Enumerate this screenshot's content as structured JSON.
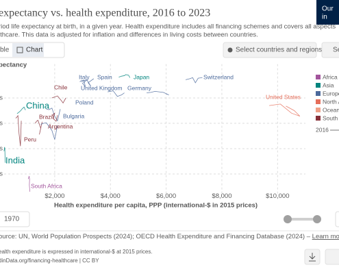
{
  "header": {
    "title": "expectancy vs. health expenditure, 2016 to 2023",
    "subtitle_lines": [
      "riod life expectancy at birth, in a given year. Health expenditure includes all financing schemes and covers all aspects",
      "lthcare. This data is adjusted for inflation and differences in living costs between countries."
    ],
    "logo_lines": [
      "Our",
      "in"
    ]
  },
  "tabs": [
    "ble",
    "Chart"
  ],
  "buttons": [
    "Select countries and regions",
    "Se"
  ],
  "chart_data": {
    "type": "line",
    "y_label": "pectancy",
    "x_label": "Health expenditure per capita, PPP (international-$ in 2015 prices)",
    "xlim": [
      0,
      11000
    ],
    "ylim": [
      61,
      86
    ],
    "xticks": [
      {
        "value": 2000,
        "label": "$2,000"
      },
      {
        "value": 4000,
        "label": "$4,000"
      },
      {
        "value": 6000,
        "label": "$6,000"
      },
      {
        "value": 8000,
        "label": "$8,000"
      },
      {
        "value": 10000,
        "label": "$10,000"
      }
    ],
    "yticks": [
      {
        "value": 65,
        "label": "s"
      },
      {
        "value": 70,
        "label": "s"
      },
      {
        "value": 75,
        "label": "s"
      },
      {
        "value": 80,
        "label": "s"
      }
    ],
    "grid": true,
    "legend": [
      {
        "name": "Africa",
        "color": "#a2559c"
      },
      {
        "name": "Asia",
        "color": "#00847e"
      },
      {
        "name": "Europe",
        "color": "#4c6a9c"
      },
      {
        "name": "North A",
        "color": "#e56e5a"
      },
      {
        "name": "Oceani",
        "color": "#f0a087"
      },
      {
        "name": "South A",
        "color": "#883039"
      }
    ],
    "legend_year": "2016",
    "series": [
      {
        "name": "Italy",
        "color": "#4c6a9c",
        "x": [
          2900,
          2950,
          3050,
          3100,
          3000,
          3150
        ],
        "values": [
          83.2,
          83.4,
          83.5,
          82.2,
          82.9,
          83.5
        ]
      },
      {
        "name": "Spain",
        "color": "#4c6a9c",
        "x": [
          2950,
          3050,
          3150,
          3300,
          3200,
          3400
        ],
        "values": [
          83.2,
          83.4,
          83.6,
          82.3,
          83.0,
          83.8
        ]
      },
      {
        "name": "Japan",
        "color": "#00847e",
        "x": [
          4300,
          4400,
          4500,
          4550,
          4650,
          4700
        ],
        "values": [
          84.1,
          84.3,
          84.4,
          84.6,
          84.5,
          84.0
        ]
      },
      {
        "name": "Switzerland",
        "color": "#4c6a9c",
        "x": [
          6700,
          6850,
          6950,
          7050,
          7150,
          7300
        ],
        "values": [
          83.6,
          83.8,
          84.0,
          83.0,
          83.9,
          84.0
        ]
      },
      {
        "name": "United Kingdom",
        "color": "#4c6a9c",
        "x": [
          3900,
          4000,
          4100,
          4250,
          4400,
          4500
        ],
        "values": [
          81.2,
          81.3,
          81.4,
          80.3,
          80.6,
          81.0
        ]
      },
      {
        "name": "Germany",
        "color": "#4c6a9c",
        "x": [
          5300,
          5450,
          5600,
          5900,
          6100,
          6000
        ],
        "values": [
          81.0,
          81.1,
          81.3,
          81.1,
          80.6,
          80.8
        ]
      },
      {
        "name": "Chile",
        "color": "#883039",
        "x": [
          1900,
          2000,
          2100,
          2250,
          2300,
          2400
        ],
        "values": [
          80.0,
          80.2,
          80.4,
          79.4,
          79.0,
          80.0
        ]
      },
      {
        "name": "Poland",
        "color": "#4c6a9c",
        "x": [
          1700,
          1800,
          1900,
          2000,
          2100,
          2200
        ],
        "values": [
          77.8,
          77.7,
          78.0,
          76.4,
          75.5,
          77.8
        ]
      },
      {
        "name": "China",
        "color": "#00847e",
        "x": [
          650,
          720,
          780,
          840,
          900,
          950
        ],
        "values": [
          76.9,
          77.2,
          77.5,
          77.9,
          78.2,
          77.6
        ]
      },
      {
        "name": "Brazil",
        "color": "#883039",
        "x": [
          1300,
          1350,
          1400,
          1500,
          1450,
          1550
        ],
        "values": [
          75.0,
          75.4,
          75.6,
          74.0,
          72.8,
          75.3
        ]
      },
      {
        "name": "Bulgaria",
        "color": "#4c6a9c",
        "x": [
          1500,
          1600,
          1700,
          1900,
          2000,
          2100
        ],
        "values": [
          74.8,
          75.0,
          75.1,
          73.6,
          71.8,
          74.6
        ]
      },
      {
        "name": "Argentina",
        "color": "#883039",
        "x": [
          1900,
          1950,
          2000,
          1950,
          2050,
          2100
        ],
        "values": [
          76.5,
          76.8,
          77.0,
          75.9,
          75.4,
          76.6
        ]
      },
      {
        "name": "Peru",
        "color": "#883039",
        "x": [
          600,
          640,
          680,
          720,
          770,
          800
        ],
        "values": [
          76.0,
          76.2,
          76.5,
          73.0,
          70.5,
          75.5
        ]
      },
      {
        "name": "United States",
        "color": "#e56e5a",
        "x": [
          9700,
          10100,
          10500,
          10800,
          10600,
          10300
        ],
        "values": [
          78.5,
          78.8,
          77.0,
          76.4,
          77.5,
          78.4
        ]
      },
      {
        "name": "India",
        "color": "#00847e",
        "x": [
          180,
          190,
          200,
          210,
          220,
          230
        ],
        "values": [
          69.5,
          69.8,
          70.3,
          70.1,
          67.7,
          67.2
        ]
      },
      {
        "name": "South Africa",
        "color": "#a2559c",
        "x": [
          1050,
          1070,
          1080,
          1100,
          1090,
          1110
        ],
        "values": [
          64.0,
          64.3,
          64.6,
          64.0,
          62.8,
          61.5
        ]
      }
    ]
  },
  "timeline": {
    "start": "1970"
  },
  "footer": {
    "source": "ource: UN, World Population Prospects (2024); OECD Health Expenditure and Financing Database (2024) – ",
    "learn_more": "Learn more about t",
    "note": "ealth expenditure is expressed in international-$ at 2015 prices.",
    "url": "dinData.org/financing-healthcare | CC BY"
  }
}
